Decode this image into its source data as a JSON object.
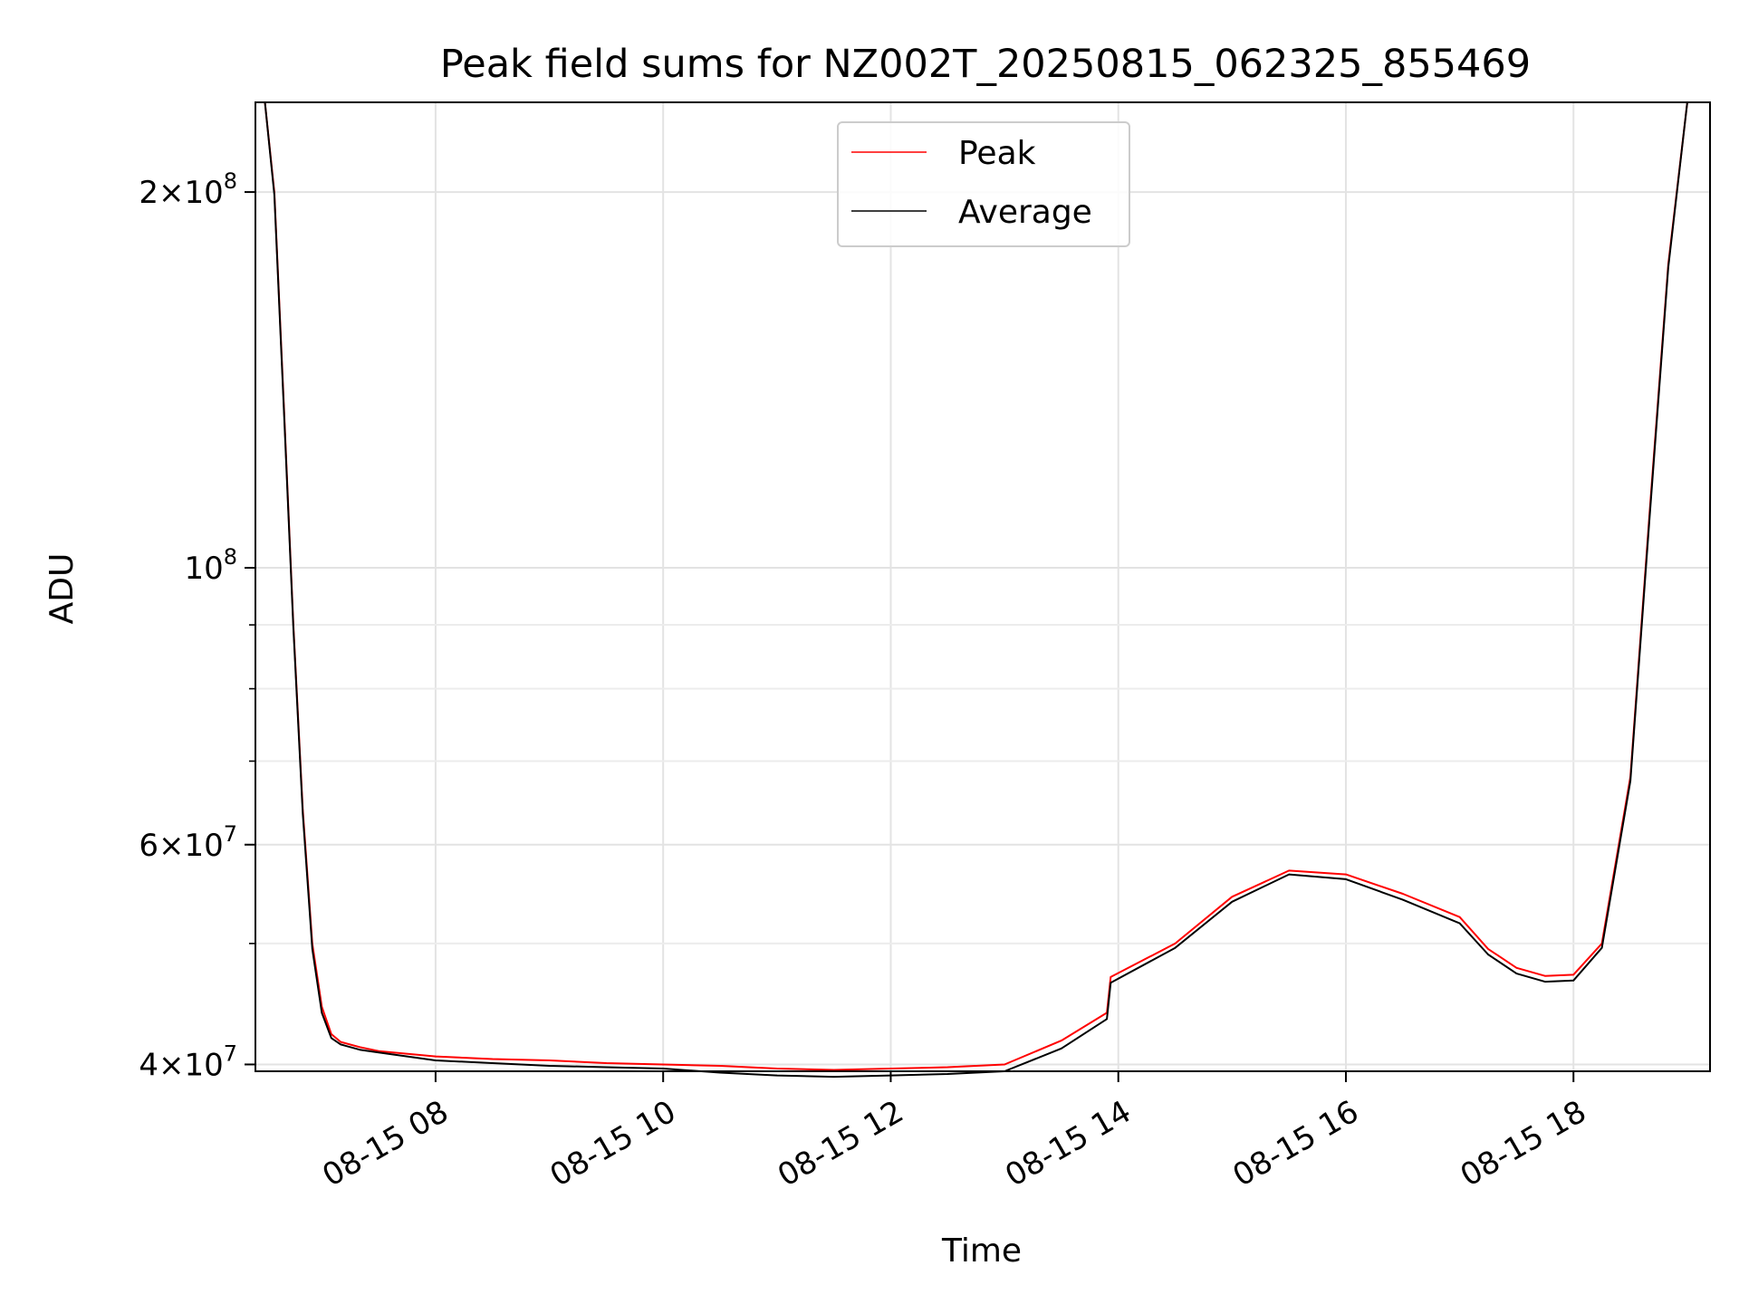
{
  "chart_data": {
    "type": "line",
    "title": "Peak field sums for NZ002T_20250815_062325_855469",
    "xlabel": "Time",
    "ylabel": "ADU",
    "yscale": "log",
    "xlim": [
      "2025-08-15 06:25",
      "2025-08-15 19:12"
    ],
    "ylim": [
      39500000,
      236000000
    ],
    "grid": true,
    "legend_position": "top-center",
    "x_ticks": [
      {
        "time": "2025-08-15 08:00",
        "label": "08-15 08"
      },
      {
        "time": "2025-08-15 10:00",
        "label": "08-15 10"
      },
      {
        "time": "2025-08-15 12:00",
        "label": "08-15 12"
      },
      {
        "time": "2025-08-15 14:00",
        "label": "08-15 14"
      },
      {
        "time": "2025-08-15 16:00",
        "label": "08-15 16"
      },
      {
        "time": "2025-08-15 18:00",
        "label": "08-15 18"
      }
    ],
    "y_major_ticks": [
      {
        "value": 40000000,
        "mantissa": "4",
        "base": "10",
        "exponent": "7"
      },
      {
        "value": 60000000,
        "mantissa": "6",
        "base": "10",
        "exponent": "7"
      },
      {
        "value": 100000000,
        "mantissa": "",
        "base": "10",
        "exponent": "8"
      },
      {
        "value": 200000000,
        "mantissa": "2",
        "base": "10",
        "exponent": "8"
      }
    ],
    "y_minor_ticks": [
      50000000,
      70000000,
      80000000,
      90000000
    ],
    "series": [
      {
        "name": "Peak",
        "color": "#ff0000",
        "x": [
          "2025-08-15 06:25",
          "2025-08-15 06:30",
          "2025-08-15 06:35",
          "2025-08-15 06:40",
          "2025-08-15 06:45",
          "2025-08-15 06:50",
          "2025-08-15 06:55",
          "2025-08-15 07:00",
          "2025-08-15 07:05",
          "2025-08-15 07:10",
          "2025-08-15 07:20",
          "2025-08-15 07:30",
          "2025-08-15 08:00",
          "2025-08-15 08:30",
          "2025-08-15 09:00",
          "2025-08-15 09:30",
          "2025-08-15 10:00",
          "2025-08-15 10:30",
          "2025-08-15 11:00",
          "2025-08-15 11:30",
          "2025-08-15 12:00",
          "2025-08-15 12:30",
          "2025-08-15 13:00",
          "2025-08-15 13:30",
          "2025-08-15 13:54",
          "2025-08-15 13:56",
          "2025-08-15 14:30",
          "2025-08-15 15:00",
          "2025-08-15 15:30",
          "2025-08-15 16:00",
          "2025-08-15 16:30",
          "2025-08-15 17:00",
          "2025-08-15 17:15",
          "2025-08-15 17:30",
          "2025-08-15 17:45",
          "2025-08-15 18:00",
          "2025-08-15 18:15",
          "2025-08-15 18:30",
          "2025-08-15 18:40",
          "2025-08-15 18:50",
          "2025-08-15 19:00",
          "2025-08-15 19:12"
        ],
        "y": [
          236000000,
          236000000,
          200000000,
          135000000,
          90000000,
          64000000,
          50000000,
          44500000,
          42300000,
          41700000,
          41300000,
          41000000,
          40600000,
          40400000,
          40300000,
          40100000,
          40000000,
          39900000,
          39700000,
          39600000,
          39700000,
          39800000,
          40000000,
          41800000,
          44000000,
          47000000,
          50000000,
          54500000,
          57200000,
          56800000,
          54800000,
          52500000,
          49500000,
          47800000,
          47100000,
          47200000,
          50000000,
          68000000,
          110000000,
          175000000,
          236000000,
          236000000
        ]
      },
      {
        "name": "Average",
        "color": "#000000",
        "x": [
          "2025-08-15 06:25",
          "2025-08-15 06:30",
          "2025-08-15 06:35",
          "2025-08-15 06:40",
          "2025-08-15 06:45",
          "2025-08-15 06:50",
          "2025-08-15 06:55",
          "2025-08-15 07:00",
          "2025-08-15 07:05",
          "2025-08-15 07:10",
          "2025-08-15 07:20",
          "2025-08-15 07:30",
          "2025-08-15 08:00",
          "2025-08-15 08:30",
          "2025-08-15 09:00",
          "2025-08-15 09:30",
          "2025-08-15 10:00",
          "2025-08-15 10:30",
          "2025-08-15 11:00",
          "2025-08-15 11:30",
          "2025-08-15 12:00",
          "2025-08-15 12:30",
          "2025-08-15 13:00",
          "2025-08-15 13:30",
          "2025-08-15 13:54",
          "2025-08-15 13:56",
          "2025-08-15 14:30",
          "2025-08-15 15:00",
          "2025-08-15 15:30",
          "2025-08-15 16:00",
          "2025-08-15 16:30",
          "2025-08-15 17:00",
          "2025-08-15 17:15",
          "2025-08-15 17:30",
          "2025-08-15 17:45",
          "2025-08-15 18:00",
          "2025-08-15 18:15",
          "2025-08-15 18:30",
          "2025-08-15 18:40",
          "2025-08-15 18:50",
          "2025-08-15 19:00",
          "2025-08-15 19:12"
        ],
        "y": [
          236000000,
          236000000,
          199000000,
          134000000,
          89500000,
          63500000,
          49500000,
          44000000,
          42000000,
          41500000,
          41100000,
          40900000,
          40300000,
          40100000,
          39900000,
          39800000,
          39700000,
          39400000,
          39200000,
          39100000,
          39200000,
          39300000,
          39500000,
          41200000,
          43500000,
          46500000,
          49600000,
          54000000,
          56800000,
          56300000,
          54200000,
          51900000,
          49000000,
          47300000,
          46600000,
          46700000,
          49600000,
          67500000,
          109000000,
          174000000,
          236000000,
          236000000
        ]
      }
    ]
  }
}
